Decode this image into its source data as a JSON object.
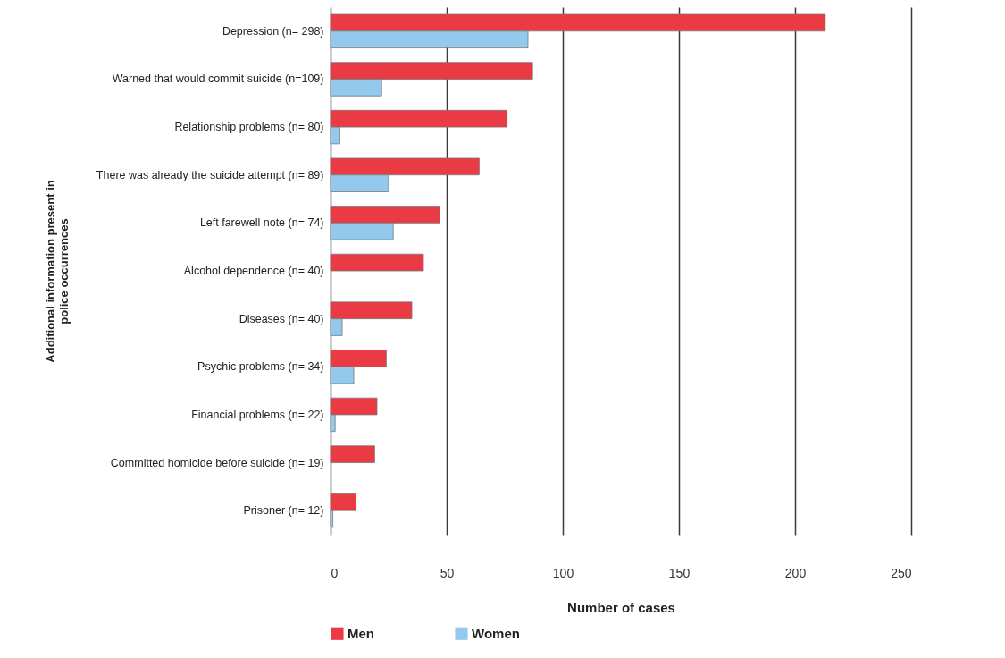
{
  "chart_data": {
    "type": "bar",
    "orientation": "horizontal",
    "xlabel": "Number of cases",
    "ylabel": "Additional information present in police occurrences",
    "categories": [
      "Depression (n= 298)",
      "Warned that would commit suicide (n=109)",
      "Relationship problems (n= 80)",
      "There was already the suicide attempt (n= 89)",
      "Left farewell note (n= 74)",
      "Alcohol dependence (n= 40)",
      "Diseases (n= 40)",
      "Psychic problems (n= 34)",
      "Financial problems (n= 22)",
      "Committed homicide before suicide (n= 19)",
      "Prisoner (n= 12)"
    ],
    "series": [
      {
        "name": "Men",
        "color": "#ea3a44",
        "values": [
          213,
          87,
          76,
          64,
          47,
          40,
          35,
          24,
          20,
          19,
          11
        ]
      },
      {
        "name": "Women",
        "color": "#92c9ec",
        "values": [
          85,
          22,
          4,
          25,
          27,
          null,
          5,
          10,
          2,
          null,
          1
        ]
      }
    ],
    "xlim": [
      0,
      250
    ],
    "xticks": [
      0,
      50,
      100,
      150,
      200,
      250
    ],
    "grid": "x",
    "legend": "bottom"
  }
}
